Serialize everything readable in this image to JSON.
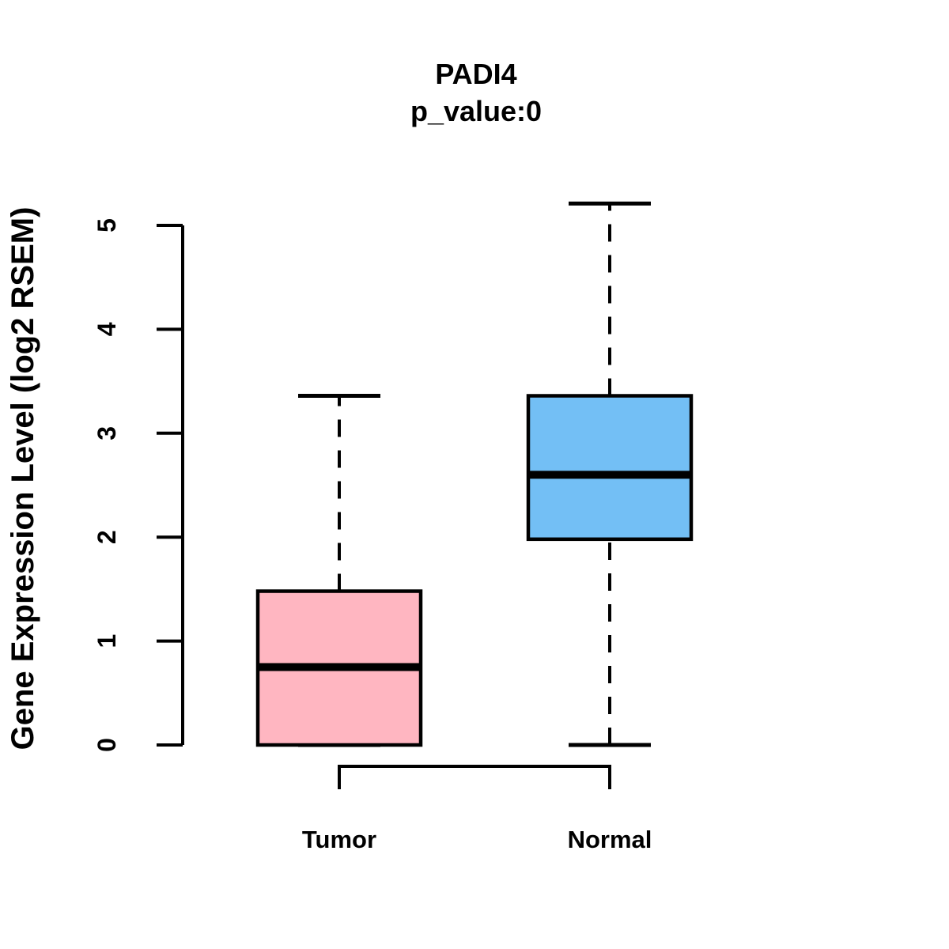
{
  "title": "PADI4",
  "subtitle": "p_value:0",
  "chart_data": {
    "type": "boxplot",
    "title": "PADI4",
    "subtitle": "p_value:0",
    "xlabel": "",
    "ylabel": "Gene Expression Level (log2 RSEM)",
    "ylim": [
      0,
      5
    ],
    "yticks": [
      0,
      1,
      2,
      3,
      4,
      5
    ],
    "grid": "off",
    "legend": "none",
    "groups": [
      {
        "label": "Tumor",
        "fill_color": "#FFB6C1",
        "whisker_min": 0,
        "q1": 0,
        "median": 0.75,
        "q3": 1.48,
        "whisker_max": 3.36
      },
      {
        "label": "Normal",
        "fill_color": "#73BFF5",
        "whisker_min": 0,
        "q1": 1.98,
        "median": 2.6,
        "q3": 3.36,
        "whisker_max": 5.21
      }
    ],
    "comparison_bracket": {
      "between": [
        "Tumor",
        "Normal"
      ],
      "style": "downward-staple-below-axis"
    }
  },
  "colors": {
    "line": "#000000",
    "background": "#FFFFFF",
    "tumor_fill": "#FFB6C1",
    "normal_fill": "#73BFF5"
  }
}
